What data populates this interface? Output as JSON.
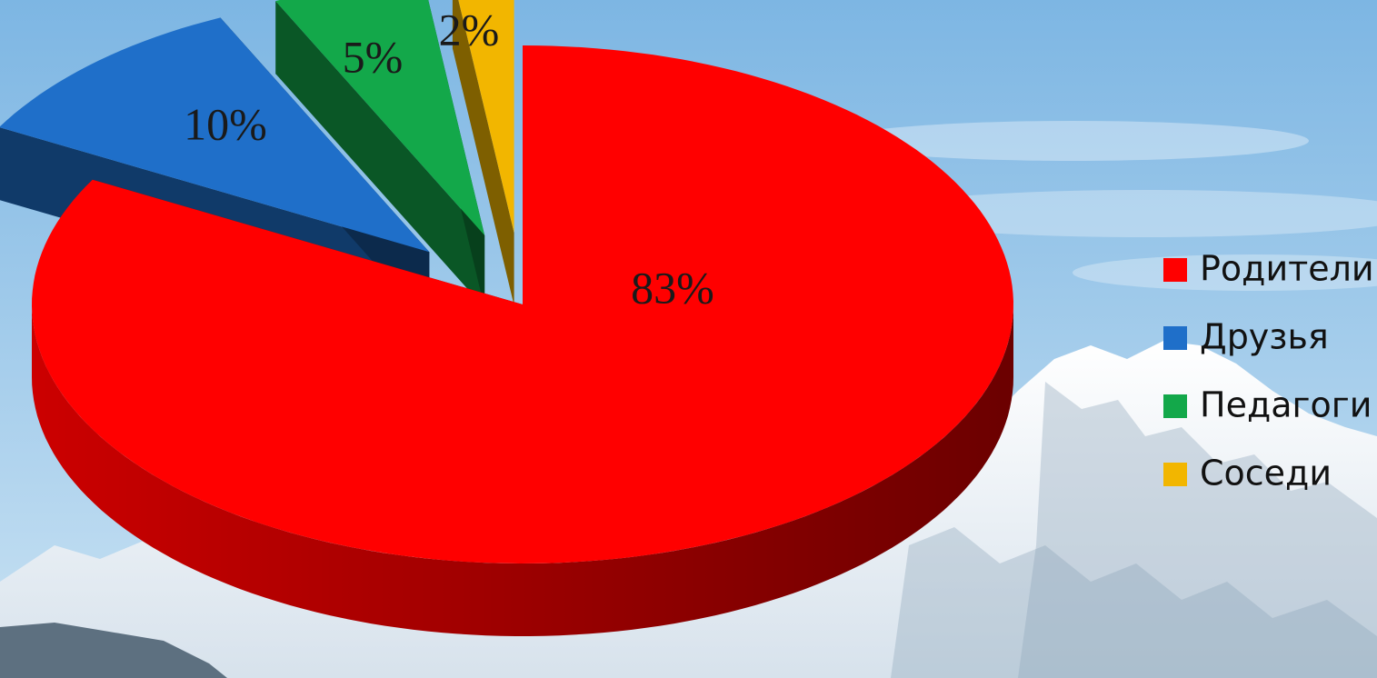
{
  "chart_data": {
    "type": "pie",
    "style": "3d-exploded",
    "title": "",
    "legend_position": "right",
    "slices": [
      {
        "label": "Родители",
        "value": 83,
        "value_label": "83%",
        "color": "#ff0000"
      },
      {
        "label": "Друзья",
        "value": 10,
        "value_label": "10%",
        "color": "#1f6fc9"
      },
      {
        "label": "Педагоги",
        "value": 5,
        "value_label": "5%",
        "color": "#13a84a"
      },
      {
        "label": "Соседи",
        "value": 2,
        "value_label": "2%",
        "color": "#f2b600"
      }
    ]
  },
  "background": {
    "sky_top": "#7db6e3",
    "sky_bottom": "#c9e2f3",
    "snow": "#f2f6fa",
    "rock": "#5d7080"
  }
}
